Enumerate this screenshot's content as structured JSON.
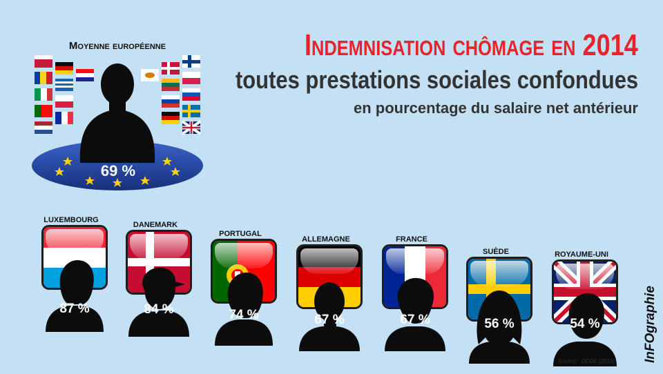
{
  "title": "Indemnisation chômage en 2014",
  "subtitle": "toutes prestations sociales confondues",
  "unit_line": "en pourcentage du salaire net antérieur",
  "colors": {
    "title": "#e8242a",
    "text": "#333333",
    "silhouette": "#0c0c0c",
    "background": "#c4e0f4",
    "eu_blue": "#1f3f9a",
    "eu_star": "#f7d117"
  },
  "chart_data": {
    "type": "bar",
    "title": "Indemnisation chômage en 2014",
    "subtitle": "toutes prestations sociales confondues",
    "ylabel": "en pourcentage du salaire net antérieur",
    "average": {
      "label": "Moyenne européenne",
      "value": 69,
      "display": "69 %"
    },
    "categories": [
      "Luxembourg",
      "Danemark",
      "Portugal",
      "Allemagne",
      "France",
      "Suède",
      "Royaume-Uni"
    ],
    "values": [
      87,
      84,
      74,
      67,
      67,
      56,
      54
    ],
    "labels": [
      "87 %",
      "84 %",
      "74 %",
      "67 %",
      "67 %",
      "56 %",
      "54 %"
    ],
    "flags": [
      "luxembourg-flag-icon",
      "denmark-flag-icon",
      "portugal-flag-icon",
      "germany-flag-icon",
      "france-flag-icon",
      "sweden-flag-icon",
      "uk-flag-icon"
    ],
    "ylim": [
      0,
      100
    ]
  },
  "source": "Source : OCDE (2016)",
  "brand": {
    "logo_text": "InFOgraphie",
    "icon": "infographie-logo-icon"
  }
}
